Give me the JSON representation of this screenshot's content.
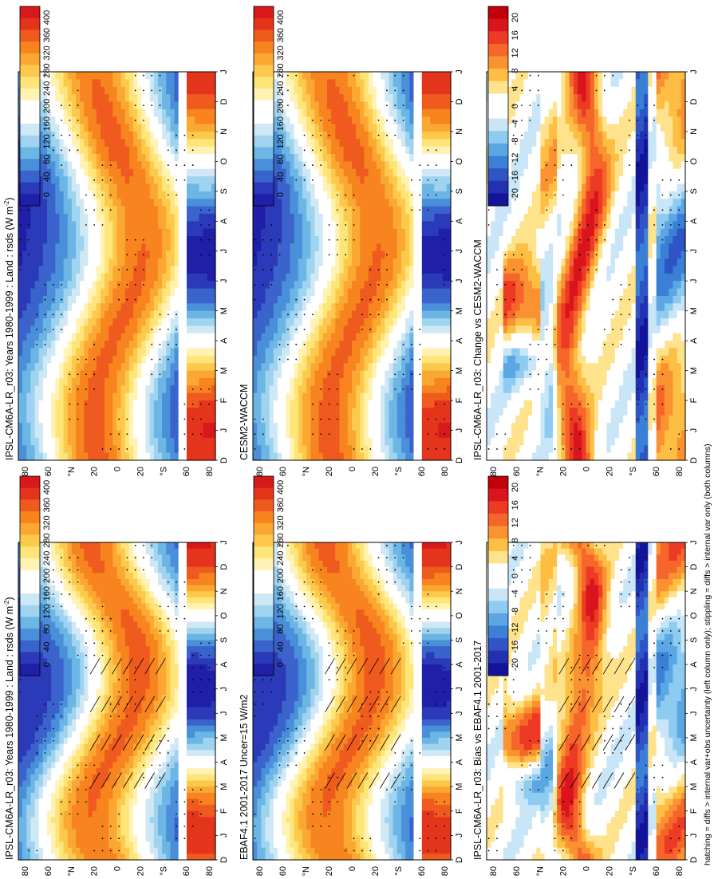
{
  "footnote": "hatching = diffs > internal var+obs uncertainty (left column only); stippling = diffs > internal var only (both columns)",
  "axis": {
    "months": [
      "D",
      "J",
      "F",
      "M",
      "A",
      "M",
      "J",
      "J",
      "A",
      "S",
      "O",
      "N",
      "D",
      "J"
    ],
    "lat_labels": [
      "80",
      "60",
      "°N",
      "20",
      "0",
      "20",
      "°S",
      "60",
      "80"
    ]
  },
  "colorbars": {
    "absolute": {
      "labels": [
        "400",
        "360",
        "320",
        "280",
        "240",
        "200",
        "160",
        "120",
        "80",
        "40",
        "0"
      ]
    },
    "difference": {
      "labels": [
        "20",
        "16",
        "12",
        "8",
        "4",
        "0",
        "-4",
        "-8",
        "-12",
        "-16",
        "-20"
      ]
    }
  },
  "palettes": {
    "absolute": [
      "#d7191c",
      "#e4341c",
      "#ef5a1e",
      "#f7841f",
      "#fba833",
      "#fdc94c",
      "#fee57a",
      "#fff2b3",
      "#ffffff",
      "#ffffff",
      "#cfe8f5",
      "#9fd3ef",
      "#6cb6e6",
      "#4a8fd9",
      "#3a63cc",
      "#2b3ab8",
      "#1f1fa8"
    ],
    "difference": [
      "#c0000a",
      "#d9141c",
      "#ec3a24",
      "#f6652a",
      "#fb9232",
      "#fdbe43",
      "#fee38c",
      "#ffffff",
      "#ffffff",
      "#c8e6f7",
      "#8ecbf0",
      "#5aa7e3",
      "#3b7fd6",
      "#2e54c6",
      "#2131b2",
      "#14149a"
    ]
  },
  "chart_data": [
    {
      "type": "heatmap",
      "panel": "top-left",
      "title": "IPSL-CM6A-LR_r03: Years 1980-1999 : Land : rsds (W m",
      "title_sup": "-2",
      "title_end": ")",
      "colorbar": "absolute",
      "overlay": {
        "stippling": true,
        "hatching": true
      },
      "x": [
        "D",
        "J",
        "F",
        "M",
        "A",
        "M",
        "J",
        "J",
        "A",
        "S",
        "O",
        "N",
        "D",
        "J"
      ],
      "y_lat_range": [
        -90,
        90
      ]
    },
    {
      "type": "heatmap",
      "panel": "top-right",
      "title": "IPSL-CM6A-LR_r03: Years 1980-1999 : Land : rsds (W m",
      "title_sup": "-2",
      "title_end": ")",
      "colorbar": "absolute",
      "overlay": {
        "stippling": true,
        "hatching": false
      },
      "x": [
        "D",
        "J",
        "F",
        "M",
        "A",
        "M",
        "J",
        "J",
        "A",
        "S",
        "O",
        "N",
        "D",
        "J"
      ],
      "y_lat_range": [
        -90,
        90
      ]
    },
    {
      "type": "heatmap",
      "panel": "middle-left",
      "title": "EBAF4.1 2001-2017 Uncer=15 W/m2",
      "colorbar": "absolute",
      "overlay": {
        "stippling": true,
        "hatching": true
      },
      "x": [
        "D",
        "J",
        "F",
        "M",
        "A",
        "M",
        "J",
        "J",
        "A",
        "S",
        "O",
        "N",
        "D",
        "J"
      ],
      "y_lat_range": [
        -90,
        90
      ]
    },
    {
      "type": "heatmap",
      "panel": "middle-right",
      "title": "CESM2-WACCM",
      "colorbar": "absolute",
      "overlay": {
        "stippling": true,
        "hatching": false
      },
      "x": [
        "D",
        "J",
        "F",
        "M",
        "A",
        "M",
        "J",
        "J",
        "A",
        "S",
        "O",
        "N",
        "D",
        "J"
      ],
      "y_lat_range": [
        -90,
        90
      ]
    },
    {
      "type": "heatmap",
      "panel": "bottom-left",
      "title": "IPSL-CM6A-LR_r03: Bias vs EBAF4.1 2001-2017",
      "colorbar": "difference",
      "overlay": {
        "stippling": true,
        "hatching": true
      },
      "x": [
        "D",
        "J",
        "F",
        "M",
        "A",
        "M",
        "J",
        "J",
        "A",
        "S",
        "O",
        "N",
        "D",
        "J"
      ],
      "y_lat_range": [
        -90,
        90
      ]
    },
    {
      "type": "heatmap",
      "panel": "bottom-right",
      "title": "IPSL-CM6A-LR_r03: Change vs CESM2-WACCM",
      "colorbar": "difference",
      "overlay": {
        "stippling": true,
        "hatching": false
      },
      "x": [
        "D",
        "J",
        "F",
        "M",
        "A",
        "M",
        "J",
        "J",
        "A",
        "S",
        "O",
        "N",
        "D",
        "J"
      ],
      "y_lat_range": [
        -90,
        90
      ]
    }
  ]
}
